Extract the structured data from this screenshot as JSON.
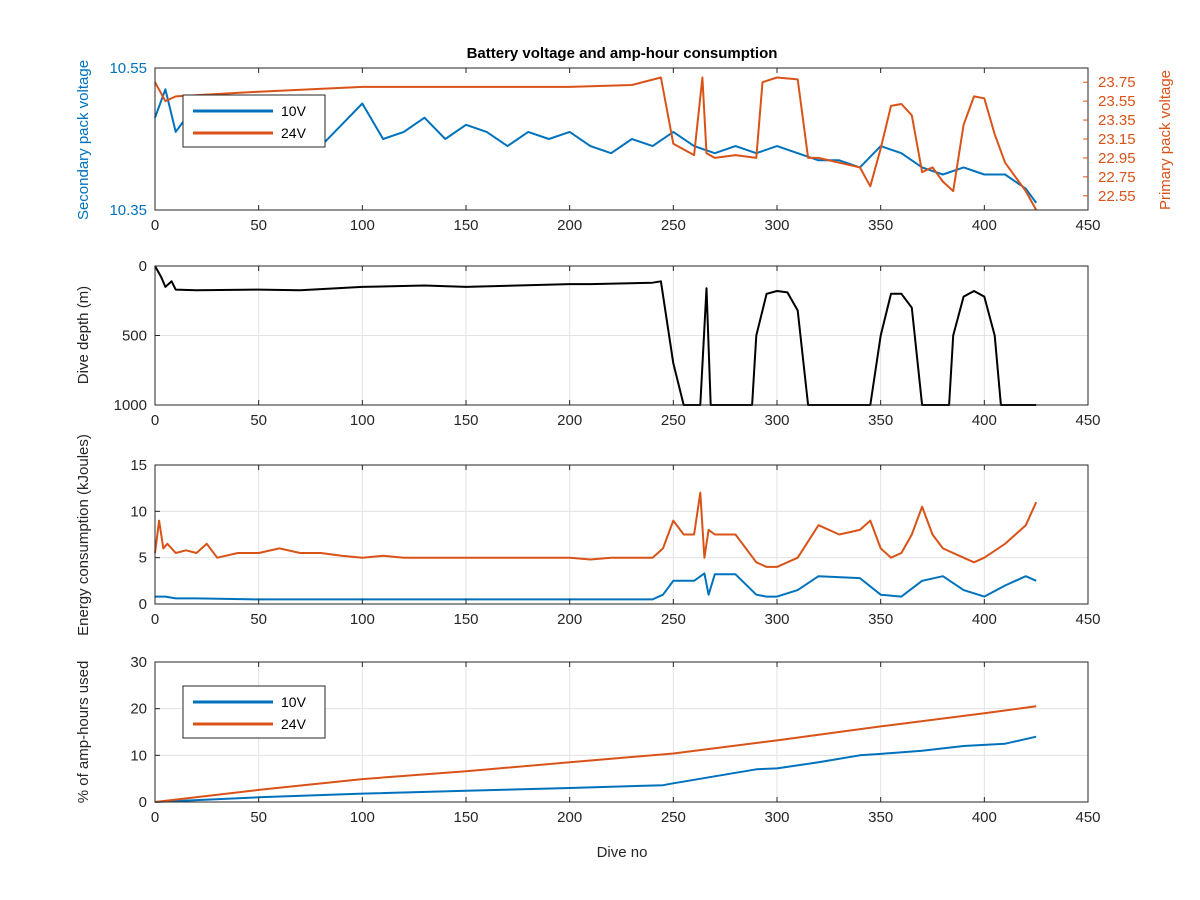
{
  "colors": {
    "blue": "#0072BD",
    "orange": "#D95319",
    "black": "#000000"
  },
  "chart_data": [
    {
      "type": "line",
      "title": "Battery voltage and amp-hour consumption",
      "xlabel": "",
      "ylabel": "Secondary pack voltage",
      "ylabel_right": "Primary pack voltage",
      "xlim": [
        0,
        450
      ],
      "xticks": [
        "0",
        "50",
        "100",
        "150",
        "200",
        "250",
        "300",
        "350",
        "400",
        "450"
      ],
      "ylim": [
        10.35,
        10.55
      ],
      "yticks": [
        "10.35",
        "10.55"
      ],
      "ylim_right": [
        22.4,
        23.9
      ],
      "yticks_right": [
        "22.55",
        "22.75",
        "22.95",
        "23.15",
        "23.35",
        "23.55",
        "23.75"
      ],
      "legend": "top-left",
      "grid": false,
      "series": [
        {
          "name": "10V",
          "axis": "left",
          "color": "blue",
          "x": [
            0,
            5,
            10,
            20,
            30,
            40,
            50,
            60,
            70,
            80,
            90,
            100,
            110,
            120,
            130,
            140,
            150,
            160,
            170,
            180,
            190,
            200,
            210,
            220,
            230,
            240,
            250,
            260,
            270,
            280,
            290,
            300,
            310,
            320,
            330,
            340,
            350,
            360,
            370,
            380,
            390,
            400,
            410,
            420,
            425
          ],
          "y": [
            10.48,
            10.52,
            10.46,
            10.5,
            10.47,
            10.45,
            10.49,
            10.46,
            10.48,
            10.44,
            10.47,
            10.5,
            10.45,
            10.46,
            10.48,
            10.45,
            10.47,
            10.46,
            10.44,
            10.46,
            10.45,
            10.46,
            10.44,
            10.43,
            10.45,
            10.44,
            10.46,
            10.44,
            10.43,
            10.44,
            10.43,
            10.44,
            10.43,
            10.42,
            10.42,
            10.41,
            10.44,
            10.43,
            10.41,
            10.4,
            10.41,
            10.4,
            10.4,
            10.38,
            10.36
          ]
        },
        {
          "name": "24V",
          "axis": "right",
          "color": "orange",
          "x": [
            0,
            5,
            10,
            50,
            100,
            150,
            200,
            230,
            244,
            250,
            260,
            264,
            266,
            270,
            280,
            290,
            293,
            300,
            310,
            315,
            320,
            330,
            340,
            345,
            350,
            355,
            360,
            365,
            370,
            375,
            380,
            385,
            390,
            395,
            400,
            405,
            410,
            420,
            425
          ],
          "y": [
            23.75,
            23.55,
            23.6,
            23.65,
            23.7,
            23.7,
            23.7,
            23.72,
            23.8,
            23.1,
            22.98,
            23.8,
            23.0,
            22.95,
            22.98,
            22.95,
            23.75,
            23.8,
            23.78,
            22.95,
            22.95,
            22.9,
            22.85,
            22.65,
            23.05,
            23.5,
            23.52,
            23.4,
            22.8,
            22.85,
            22.7,
            22.6,
            23.3,
            23.6,
            23.58,
            23.2,
            22.9,
            22.6,
            22.4
          ]
        }
      ]
    },
    {
      "type": "line",
      "title": "",
      "xlabel": "",
      "ylabel": "Dive depth (m)",
      "xlim": [
        0,
        450
      ],
      "xticks": [
        "0",
        "50",
        "100",
        "150",
        "200",
        "250",
        "300",
        "350",
        "400",
        "450"
      ],
      "ylim": [
        0,
        1000
      ],
      "yticks": [
        "0",
        "500",
        "1000"
      ],
      "y_reversed": true,
      "grid": true,
      "series": [
        {
          "name": "",
          "color": "black",
          "x": [
            0,
            3,
            5,
            8,
            10,
            20,
            50,
            70,
            100,
            130,
            150,
            200,
            210,
            240,
            244,
            250,
            255,
            260,
            263,
            266,
            268,
            270,
            285,
            288,
            290,
            295,
            300,
            305,
            310,
            315,
            320,
            340,
            345,
            350,
            355,
            360,
            365,
            370,
            380,
            383,
            385,
            390,
            395,
            400,
            405,
            408,
            410,
            420,
            425
          ],
          "y": [
            0,
            80,
            150,
            110,
            170,
            175,
            170,
            175,
            150,
            140,
            150,
            130,
            130,
            120,
            110,
            700,
            1000,
            1000,
            1000,
            160,
            1000,
            1000,
            1000,
            1000,
            500,
            200,
            180,
            190,
            320,
            1000,
            1000,
            1000,
            1000,
            500,
            200,
            200,
            300,
            1000,
            1000,
            1000,
            500,
            220,
            180,
            220,
            500,
            1000,
            1000,
            1000,
            1000
          ]
        }
      ]
    },
    {
      "type": "line",
      "title": "",
      "xlabel": "",
      "ylabel": "Energy consumption (kJoules)",
      "xlim": [
        0,
        450
      ],
      "xticks": [
        "0",
        "50",
        "100",
        "150",
        "200",
        "250",
        "300",
        "350",
        "400",
        "450"
      ],
      "ylim": [
        0,
        15
      ],
      "yticks": [
        "0",
        "5",
        "10",
        "15"
      ],
      "grid": true,
      "series": [
        {
          "name": "24V",
          "color": "orange",
          "x": [
            0,
            2,
            4,
            6,
            10,
            15,
            20,
            25,
            30,
            40,
            50,
            60,
            70,
            80,
            90,
            100,
            110,
            120,
            130,
            140,
            150,
            160,
            170,
            180,
            190,
            200,
            210,
            220,
            230,
            240,
            245,
            250,
            255,
            260,
            263,
            265,
            267,
            270,
            280,
            290,
            295,
            300,
            310,
            320,
            330,
            340,
            345,
            350,
            355,
            360,
            365,
            370,
            375,
            380,
            390,
            395,
            400,
            410,
            420,
            425
          ],
          "y": [
            5.5,
            9.0,
            6.0,
            6.5,
            5.5,
            5.8,
            5.5,
            6.5,
            5.0,
            5.5,
            5.5,
            6.0,
            5.5,
            5.5,
            5.2,
            5.0,
            5.2,
            5.0,
            5.0,
            5.0,
            5.0,
            5.0,
            5.0,
            5.0,
            5.0,
            5.0,
            4.8,
            5.0,
            5.0,
            5.0,
            6.0,
            9.0,
            7.5,
            7.5,
            12.0,
            5.0,
            8.0,
            7.5,
            7.5,
            4.5,
            4.0,
            4.0,
            5.0,
            8.5,
            7.5,
            8.0,
            9.0,
            6.0,
            5.0,
            5.5,
            7.5,
            10.5,
            7.5,
            6.0,
            5.0,
            4.5,
            5.0,
            6.5,
            8.5,
            11.0
          ]
        },
        {
          "name": "10V",
          "color": "blue",
          "x": [
            0,
            5,
            10,
            20,
            50,
            100,
            150,
            200,
            240,
            245,
            250,
            260,
            265,
            267,
            270,
            280,
            290,
            295,
            300,
            310,
            320,
            340,
            350,
            360,
            370,
            380,
            390,
            400,
            410,
            420,
            425
          ],
          "y": [
            0.8,
            0.8,
            0.6,
            0.6,
            0.5,
            0.5,
            0.5,
            0.5,
            0.5,
            1.0,
            2.5,
            2.5,
            3.3,
            1.0,
            3.2,
            3.2,
            1.0,
            0.8,
            0.8,
            1.5,
            3.0,
            2.8,
            1.0,
            0.8,
            2.5,
            3.0,
            1.5,
            0.8,
            2.0,
            3.0,
            2.5
          ]
        }
      ]
    },
    {
      "type": "line",
      "title": "",
      "xlabel": "Dive no",
      "ylabel": "% of amp-hours used",
      "xlim": [
        0,
        450
      ],
      "xticks": [
        "0",
        "50",
        "100",
        "150",
        "200",
        "250",
        "300",
        "350",
        "400",
        "450"
      ],
      "ylim": [
        0,
        30
      ],
      "yticks": [
        "0",
        "10",
        "20",
        "30"
      ],
      "legend": "top-left",
      "grid": true,
      "series": [
        {
          "name": "10V",
          "color": "blue",
          "x": [
            0,
            50,
            100,
            150,
            200,
            245,
            250,
            270,
            290,
            300,
            320,
            340,
            350,
            370,
            390,
            410,
            425
          ],
          "y": [
            0,
            1.0,
            1.8,
            2.4,
            3.0,
            3.6,
            4.0,
            5.5,
            7.0,
            7.2,
            8.5,
            10.0,
            10.3,
            11.0,
            12.0,
            12.5,
            14.0
          ]
        },
        {
          "name": "24V",
          "color": "orange",
          "x": [
            0,
            50,
            100,
            150,
            200,
            250,
            300,
            350,
            400,
            425
          ],
          "y": [
            0,
            2.6,
            4.9,
            6.6,
            8.5,
            10.4,
            13.2,
            16.2,
            19.0,
            20.5
          ]
        }
      ]
    }
  ]
}
